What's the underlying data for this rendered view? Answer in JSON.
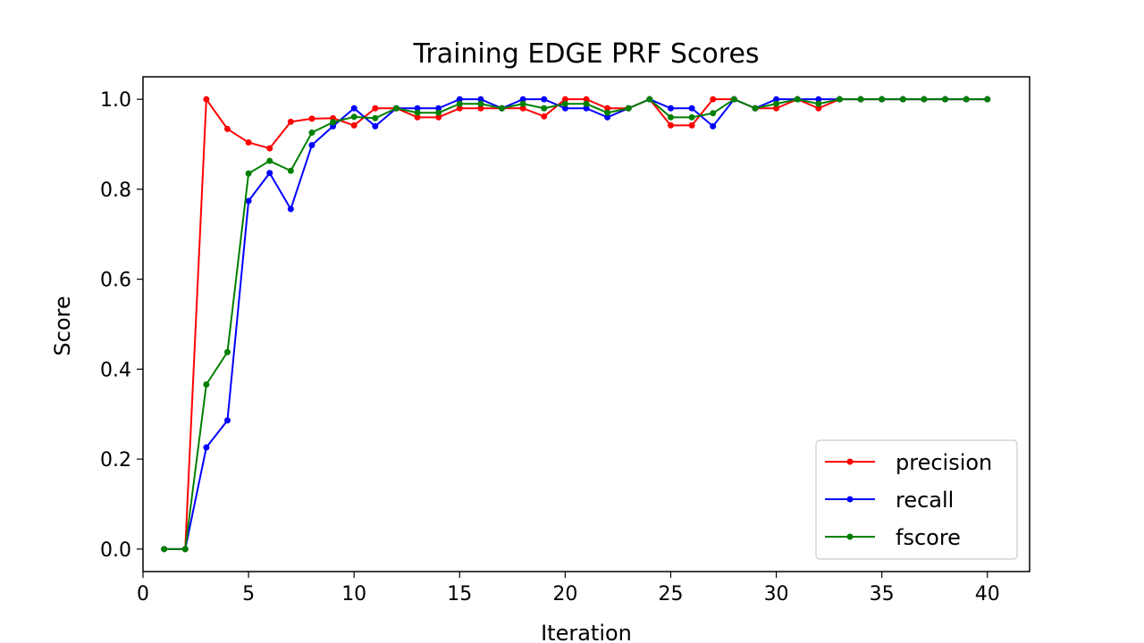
{
  "chart_data": {
    "type": "line",
    "title": "Training EDGE PRF Scores",
    "xlabel": "Iteration",
    "ylabel": "Score",
    "xlim": [
      0,
      42
    ],
    "ylim": [
      -0.05,
      1.05
    ],
    "xticks": [
      0,
      5,
      10,
      15,
      20,
      25,
      30,
      35,
      40
    ],
    "yticks": [
      0.0,
      0.2,
      0.4,
      0.6,
      0.8,
      1.0
    ],
    "xtick_labels": [
      "0",
      "5",
      "10",
      "15",
      "20",
      "25",
      "30",
      "35",
      "40"
    ],
    "ytick_labels": [
      "0.0",
      "0.2",
      "0.4",
      "0.6",
      "0.8",
      "1.0"
    ],
    "grid": false,
    "legend_position": "bottom-right",
    "x": [
      1,
      2,
      3,
      4,
      5,
      6,
      7,
      8,
      9,
      10,
      11,
      12,
      13,
      14,
      15,
      16,
      17,
      18,
      19,
      20,
      21,
      22,
      23,
      24,
      25,
      26,
      27,
      28,
      29,
      30,
      31,
      32,
      33,
      34,
      35,
      36,
      37,
      38,
      39,
      40
    ],
    "series": [
      {
        "name": "precision",
        "color": "#ff0000",
        "values": [
          0.0,
          0.0,
          1.0,
          0.934,
          0.904,
          0.891,
          0.95,
          0.957,
          0.958,
          0.942,
          0.98,
          0.98,
          0.96,
          0.96,
          0.98,
          0.98,
          0.98,
          0.98,
          0.962,
          1.0,
          1.0,
          0.98,
          0.98,
          1.0,
          0.942,
          0.942,
          1.0,
          1.0,
          0.98,
          0.98,
          1.0,
          0.98,
          1.0,
          1.0,
          1.0,
          1.0,
          1.0,
          1.0,
          1.0,
          1.0
        ]
      },
      {
        "name": "recall",
        "color": "#0000ff",
        "values": [
          0.0,
          0.0,
          0.226,
          0.286,
          0.774,
          0.836,
          0.756,
          0.898,
          0.94,
          0.98,
          0.94,
          0.98,
          0.98,
          0.98,
          1.0,
          1.0,
          0.98,
          1.0,
          1.0,
          0.98,
          0.98,
          0.96,
          0.98,
          1.0,
          0.98,
          0.98,
          0.94,
          1.0,
          0.98,
          1.0,
          1.0,
          1.0,
          1.0,
          1.0,
          1.0,
          1.0,
          1.0,
          1.0,
          1.0,
          1.0
        ]
      },
      {
        "name": "fscore",
        "color": "#008000",
        "values": [
          0.0,
          0.0,
          0.366,
          0.438,
          0.835,
          0.863,
          0.841,
          0.926,
          0.949,
          0.961,
          0.958,
          0.98,
          0.97,
          0.97,
          0.99,
          0.99,
          0.98,
          0.99,
          0.98,
          0.99,
          0.99,
          0.97,
          0.98,
          1.0,
          0.96,
          0.96,
          0.969,
          1.0,
          0.98,
          0.99,
          1.0,
          0.99,
          1.0,
          1.0,
          1.0,
          1.0,
          1.0,
          1.0,
          1.0,
          1.0
        ]
      }
    ]
  }
}
